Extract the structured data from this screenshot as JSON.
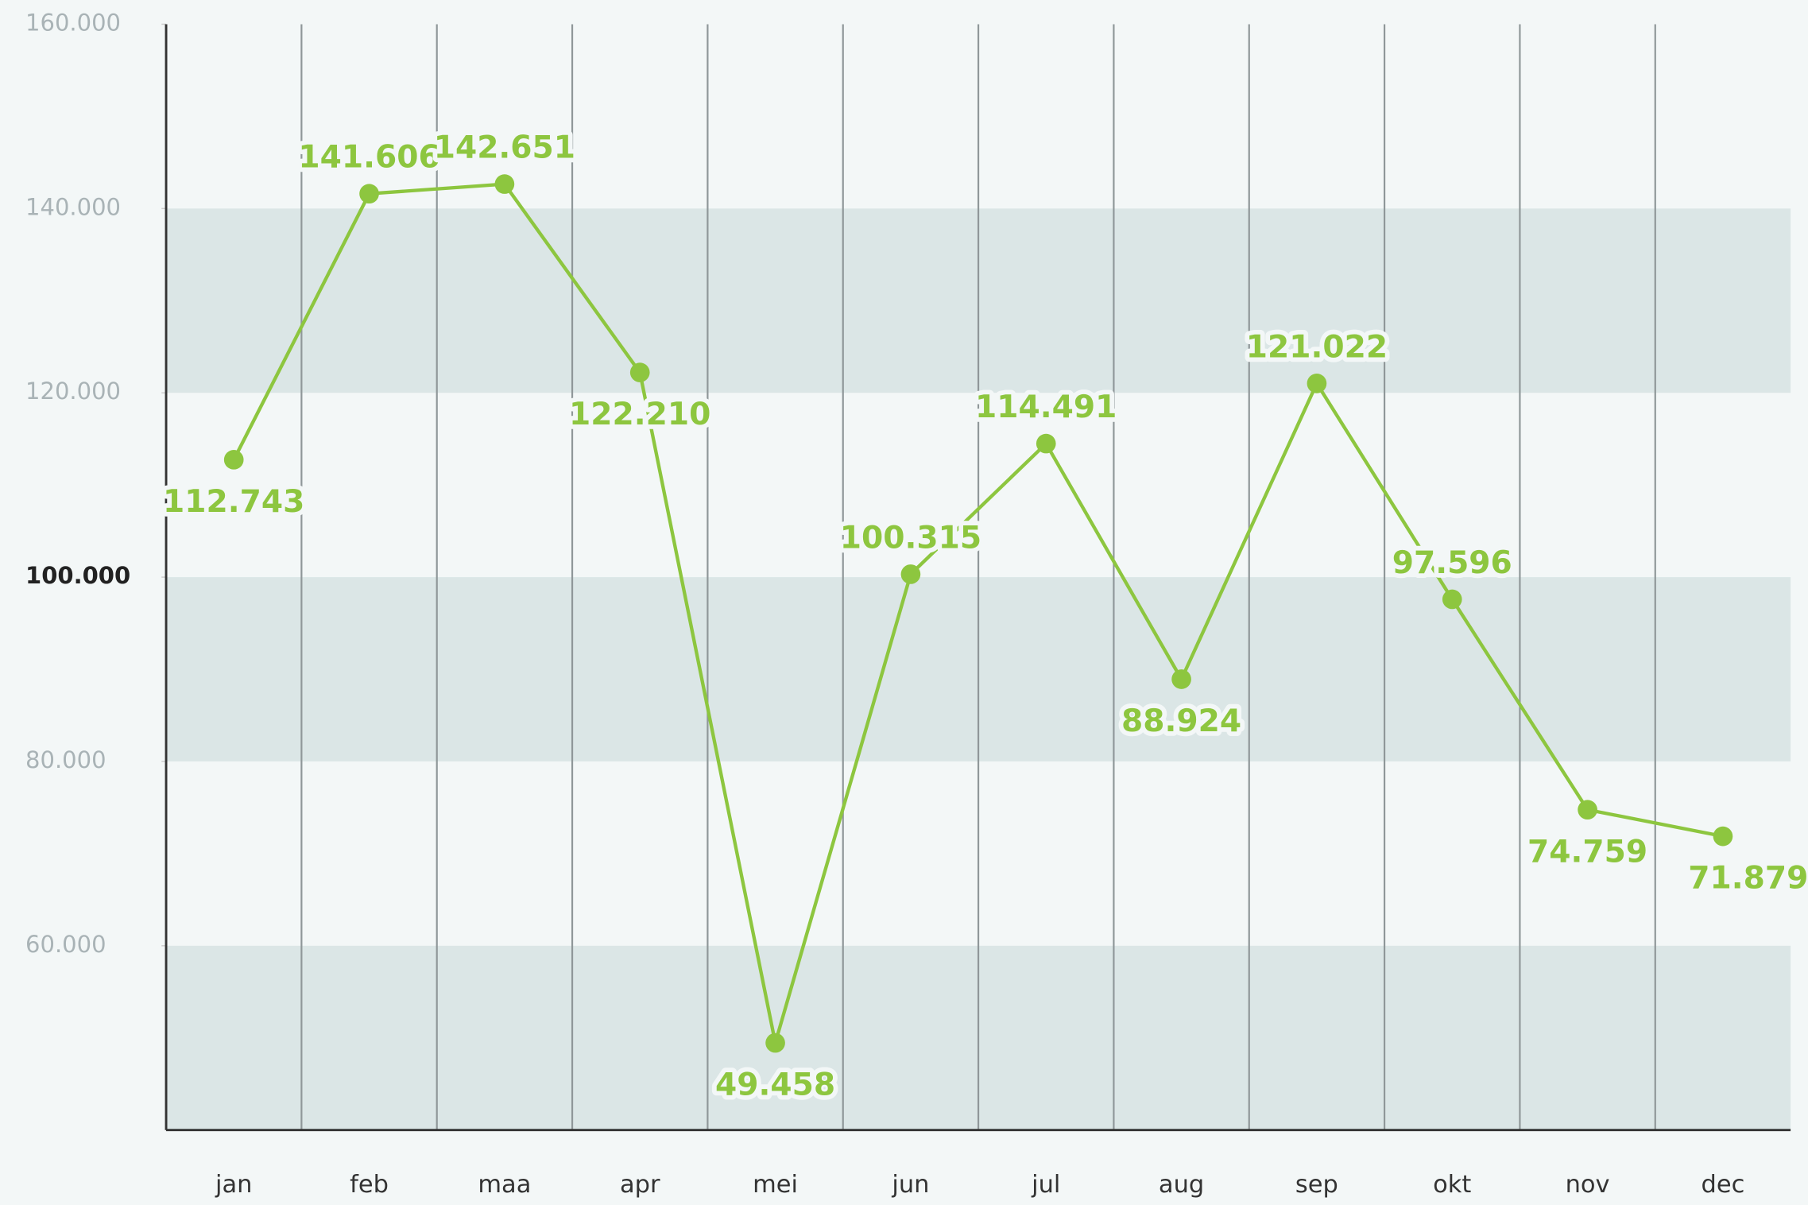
{
  "chart_data": {
    "type": "line",
    "categories": [
      "jan",
      "feb",
      "maa",
      "apr",
      "mei",
      "jun",
      "jul",
      "aug",
      "sep",
      "okt",
      "nov",
      "dec"
    ],
    "series": [
      {
        "color": "#8dc63f",
        "values": [
          112743,
          141606,
          142651,
          122210,
          49458,
          100315,
          114491,
          88924,
          121022,
          97596,
          74759,
          71879
        ],
        "value_labels": [
          "112.743",
          "141.606",
          "142.651",
          "122.210",
          "49.458",
          "100.315",
          "114.491",
          "88.924",
          "121.022",
          "97.596",
          "74.759",
          "71.879"
        ]
      }
    ],
    "ylim": [
      40000,
      160000
    ],
    "yticks": [
      {
        "value": 60000,
        "label": "60.000"
      },
      {
        "value": 80000,
        "label": "80.000"
      },
      {
        "value": 100000,
        "label": "100.000"
      },
      {
        "value": 120000,
        "label": "120.000"
      },
      {
        "value": 140000,
        "label": "140.000"
      },
      {
        "value": 160000,
        "label": "160.000"
      }
    ],
    "emphasized_ytick": 100000,
    "band_color": "#dbe6e6"
  }
}
